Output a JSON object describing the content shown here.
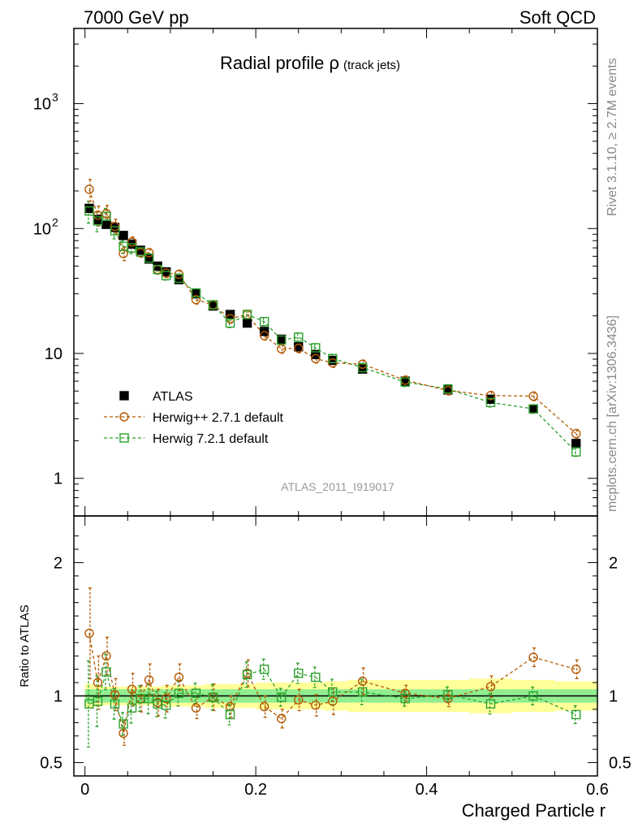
{
  "header": {
    "left": "7000 GeV pp",
    "right": "Soft QCD"
  },
  "side": {
    "rivet": "Rivet 3.1.10, ≥ 2.7M events",
    "mcplots": "mcplots.cern.ch [arXiv:1306.3436]"
  },
  "chart_data": {
    "type": "scatter",
    "title": "Radial profile ρ",
    "title_suffix": "(track jets)",
    "analysis_id": "ATLAS_2011_I919017",
    "xlabel": "Charged Particle r",
    "ratio_ylabel": "Ratio to ATLAS",
    "xlim": [
      -0.013,
      0.6
    ],
    "ylim": [
      0.5,
      4000
    ],
    "yscale": "log",
    "ratio_ylim": [
      0.4,
      2.35
    ],
    "x_ticks": [
      "0",
      "0.2",
      "0.4",
      "0.6"
    ],
    "main_y_ticks": [
      {
        "v": 1,
        "t": "1"
      },
      {
        "v": 10,
        "t": "10"
      },
      {
        "v": 100,
        "t": "10",
        "sup": "2"
      },
      {
        "v": 1000,
        "t": "10",
        "sup": "3"
      }
    ],
    "ratio_y_ticks": [
      "0.5",
      "1",
      "2"
    ],
    "legend_position": "middle-left",
    "colors": {
      "data": "#000000",
      "herwigpp": "#b35900",
      "herwig7": "#2ca02c",
      "band_yellow": "#ffff99",
      "band_green": "#90ee90"
    },
    "x": [
      0.005,
      0.015,
      0.025,
      0.035,
      0.045,
      0.055,
      0.065,
      0.075,
      0.085,
      0.095,
      0.11,
      0.13,
      0.15,
      0.17,
      0.19,
      0.21,
      0.23,
      0.25,
      0.27,
      0.29,
      0.325,
      0.375,
      0.425,
      0.475,
      0.525,
      0.575
    ],
    "series": [
      {
        "name": "ATLAS",
        "marker": "filled-square",
        "values": [
          145,
          118,
          108,
          102,
          88,
          75,
          67,
          57,
          50,
          45,
          39,
          30,
          24,
          20.5,
          17.5,
          15,
          13,
          11.3,
          9.8,
          8.8,
          7.5,
          6,
          5.1,
          4.3,
          3.6,
          1.9
        ],
        "band_inner": [
          0.05,
          0.05,
          0.05,
          0.05,
          0.05,
          0.05,
          0.05,
          0.05,
          0.05,
          0.05,
          0.05,
          0.05,
          0.05,
          0.05,
          0.05,
          0.05,
          0.05,
          0.05,
          0.05,
          0.05,
          0.05,
          0.05,
          0.05,
          0.05,
          0.05,
          0.05
        ],
        "band_outer": [
          0.09,
          0.08,
          0.07,
          0.07,
          0.07,
          0.07,
          0.07,
          0.07,
          0.07,
          0.08,
          0.08,
          0.08,
          0.09,
          0.09,
          0.09,
          0.1,
          0.1,
          0.1,
          0.1,
          0.11,
          0.12,
          0.12,
          0.12,
          0.13,
          0.12,
          0.11
        ]
      },
      {
        "name": "Herwig++ 2.7.1 default",
        "marker": "open-circle",
        "line": "dashed",
        "values": [
          206,
          128,
          132,
          104,
          63,
          78,
          64,
          64,
          47,
          44,
          43,
          27,
          24.5,
          19,
          20.5,
          13.9,
          10.9,
          11,
          9.1,
          8.4,
          8.2,
          6.1,
          5.05,
          4.6,
          4.55,
          2.28
        ],
        "ratio": [
          1.47,
          1.1,
          1.3,
          1.01,
          0.72,
          1.05,
          0.98,
          1.12,
          0.95,
          0.98,
          1.14,
          0.91,
          0.99,
          0.92,
          1.17,
          0.92,
          0.83,
          0.97,
          0.93,
          0.96,
          1.11,
          1.02,
          0.98,
          1.07,
          1.29,
          1.2
        ],
        "ratio_err": [
          0.34,
          0.2,
          0.14,
          0.12,
          0.09,
          0.12,
          0.1,
          0.12,
          0.1,
          0.1,
          0.1,
          0.08,
          0.1,
          0.08,
          0.1,
          0.08,
          0.07,
          0.08,
          0.08,
          0.1,
          0.1,
          0.06,
          0.06,
          0.08,
          0.07,
          0.07
        ]
      },
      {
        "name": "Herwig 7.2.1 default",
        "marker": "open-square",
        "line": "dashed",
        "values": [
          138,
          115,
          125,
          96,
          72,
          70,
          65,
          58,
          47,
          42,
          40,
          30.5,
          24.5,
          17.5,
          20.5,
          18,
          12.8,
          13.5,
          11.1,
          9.1,
          7.7,
          5.9,
          5.2,
          4.05,
          3.6,
          1.63
        ],
        "ratio": [
          0.94,
          0.96,
          1.18,
          0.94,
          0.79,
          0.91,
          0.98,
          0.98,
          0.94,
          0.93,
          1.02,
          1.02,
          0.99,
          0.86,
          1.16,
          1.2,
          0.99,
          1.17,
          1.14,
          1.03,
          1.03,
          0.98,
          1.01,
          0.94,
          1.0,
          0.86
        ]
      }
    ]
  }
}
